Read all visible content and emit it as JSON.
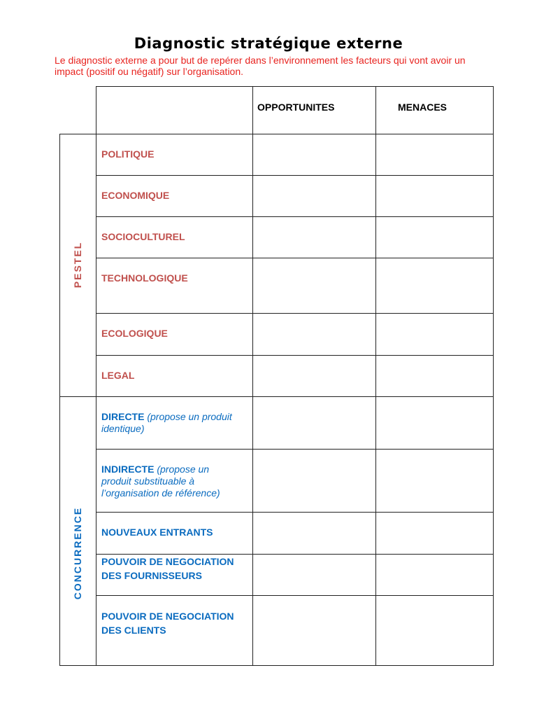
{
  "title": "Diagnostic stratégique externe",
  "intro": "Le diagnostic externe a pour but de repérer dans l’environnement les facteurs qui vont avoir un impact (positif ou négatif) sur l’organisation.",
  "colors": {
    "pestel": "#c0504d",
    "concurrence": "#0a6bbf",
    "intro": "#e8231f"
  },
  "table": {
    "headers": {
      "opportunites": "OPPORTUNITES",
      "menaces": "MENACES"
    },
    "groups": [
      {
        "label": "PESTEL",
        "rows": [
          {
            "label": "POLITIQUE"
          },
          {
            "label": "ECONOMIQUE"
          },
          {
            "label": "SOCIOCULTUREL"
          },
          {
            "label": "TECHNOLOGIQUE"
          },
          {
            "label": "ECOLOGIQUE"
          },
          {
            "label": "LEGAL"
          }
        ]
      },
      {
        "label": "CONCURRENCE",
        "rows": [
          {
            "label": "DIRECTE",
            "note": "(propose un produit identique)"
          },
          {
            "label": "INDIRECTE",
            "note": "(propose un produit substituable à l’organisation de référence)"
          },
          {
            "label": "NOUVEAUX ENTRANTS"
          },
          {
            "label": "POUVOIR DE NEGOCIATION DES FOURNISSEURS"
          },
          {
            "label": "POUVOIR DE NEGOCIATION DES CLIENTS"
          }
        ]
      }
    ]
  }
}
